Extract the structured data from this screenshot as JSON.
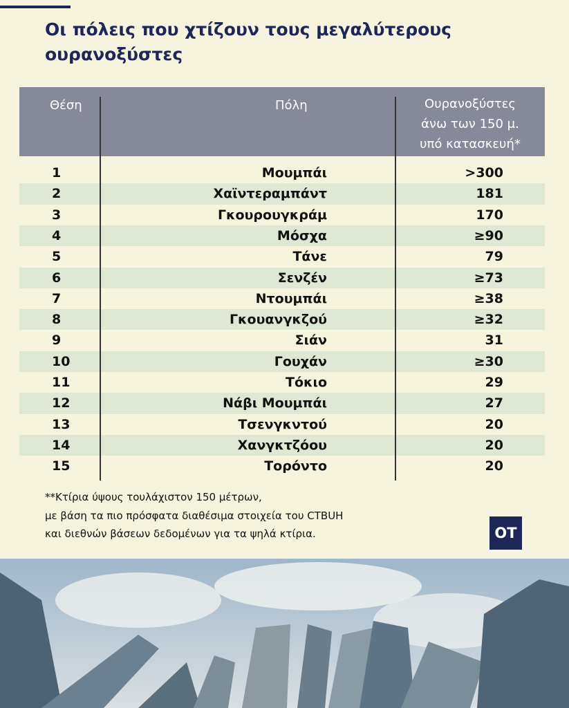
{
  "header": {
    "title_lines": [
      "Οι πόλεις που χτίζουν τους μεγαλύτερους",
      "ουρανοξύστες"
    ]
  },
  "table": {
    "columns": [
      "Θέση",
      "Πόλη",
      [
        "Ουρανοξύστες",
        "άνω των 150 μ.",
        "υπό κατασκευή*"
      ]
    ],
    "rows": [
      [
        1,
        "Μουμπάι",
        ">300"
      ],
      [
        2,
        "Χαϊντεραμπάντ",
        181
      ],
      [
        3,
        "Γκουρουγκράμ",
        170
      ],
      [
        4,
        "Μόσχα",
        "≥90"
      ],
      [
        5,
        "Τάνε",
        79
      ],
      [
        6,
        "Σενζέν",
        "≥73"
      ],
      [
        7,
        "Ντουμπάι",
        "≥38"
      ],
      [
        8,
        "Γκουανγκζού",
        "≥32"
      ],
      [
        9,
        "Σιάν",
        31
      ],
      [
        10,
        "Γουχάν",
        "≥30"
      ],
      [
        11,
        "Τόκιο",
        29
      ],
      [
        12,
        "Νάβι Μουμπάι",
        27
      ],
      [
        13,
        "Τσενγκντού",
        20
      ],
      [
        14,
        "Χανγκτζόου",
        20
      ],
      [
        15,
        "Τορόντο",
        20
      ]
    ]
  },
  "footnote": [
    "**Κτίρια ύψους τουλάχιστον 150 μέτρων,",
    "με βάση τα πιο πρόσφατα διαθέσιμα στοιχεία του CTBUH",
    "και διεθνών βάσεων δεδομένων για τα ψηλά κτίρια."
  ],
  "logo": "OT"
}
